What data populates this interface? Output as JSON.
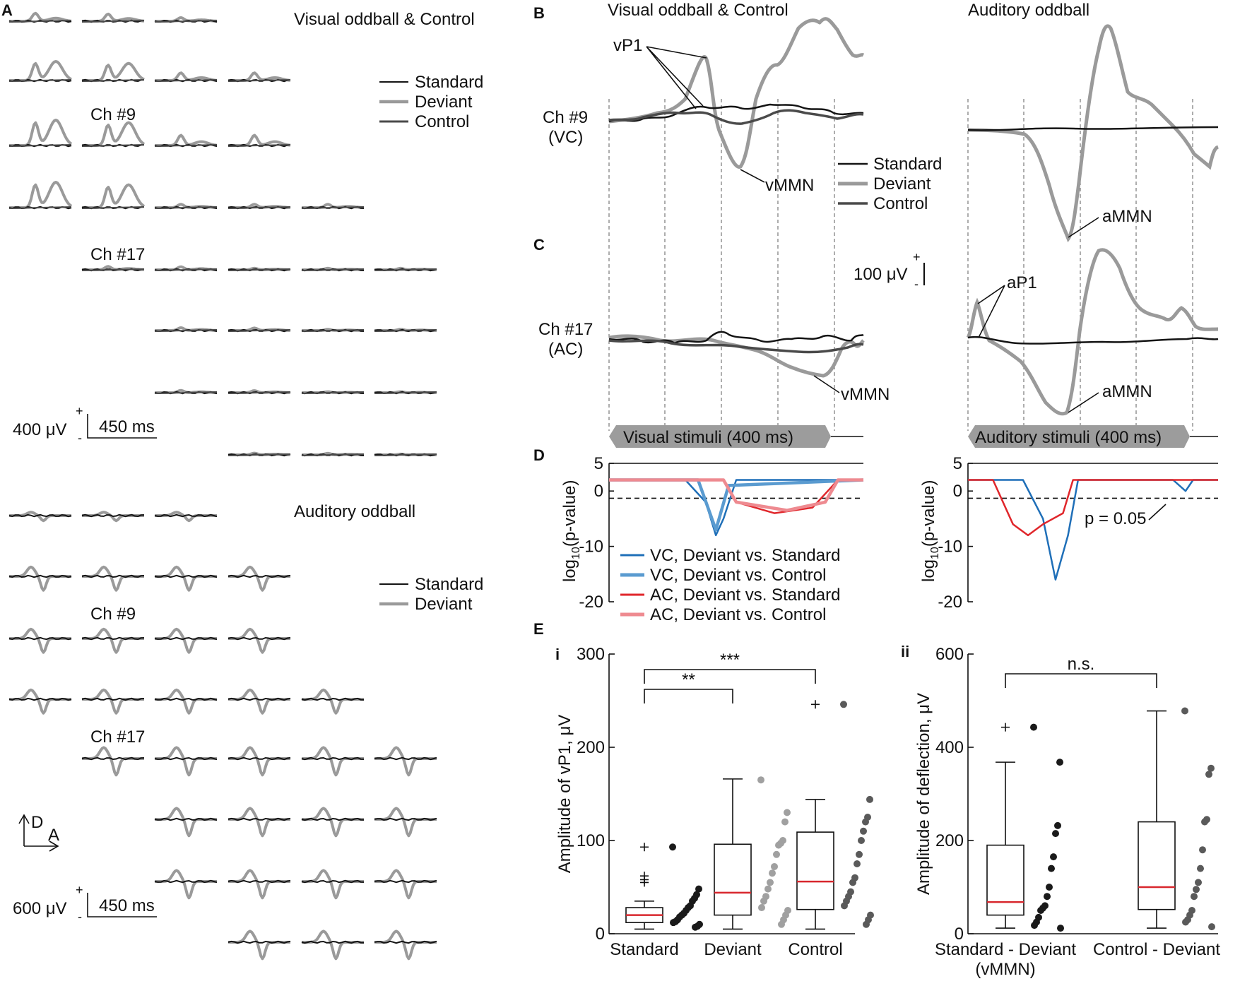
{
  "panel_labels": {
    "A": "A",
    "B": "B",
    "C": "C",
    "D": "D",
    "E": "E",
    "Ei": "i",
    "Eii": "ii"
  },
  "colors": {
    "standard": "#141414",
    "deviant": "#9a9a9a",
    "control": "#4a4a4a",
    "vc_std": "#1f6fb8",
    "vc_ctl": "#5a9bd0",
    "ac_std": "#e0262b",
    "ac_ctl": "#ee8a90",
    "median": "#d8272d"
  },
  "panelA": {
    "visual_title": "Visual oddball & Control",
    "auditory_title": "Auditory oddball",
    "legend_visual": [
      "Standard",
      "Deviant",
      "Control"
    ],
    "legend_auditory": [
      "Standard",
      "Deviant"
    ],
    "ch9": "Ch #9",
    "ch17": "Ch #17",
    "scale_visual": {
      "amp": "400 μV",
      "time": "450 ms",
      "plus": "+",
      "minus": "-"
    },
    "scale_auditory": {
      "amp": "600 μV",
      "time": "450 ms",
      "plus": "+",
      "minus": "-"
    },
    "orient_d": "D",
    "orient_a": "A"
  },
  "panelB": {
    "visual_title": "Visual oddball & Control",
    "auditory_title": "Auditory oddball",
    "channel": "Ch #9",
    "region": "(VC)",
    "annot_p1": "vP1",
    "annot_mmn": "vMMN",
    "annot_ammn": "aMMN",
    "legend": [
      "Standard",
      "Deviant",
      "Control"
    ]
  },
  "panelC": {
    "channel": "Ch #17",
    "region": "(AC)",
    "annot_mmn": "vMMN",
    "annot_ap1": "aP1",
    "annot_ammn": "aMMN",
    "scale": {
      "amp": "100 μV",
      "plus": "+",
      "minus": "-"
    },
    "visual_stim": "Visual stimuli (400 ms)",
    "auditory_stim": "Auditory stimuli (400 ms)"
  },
  "chart_data": [
    {
      "type": "line",
      "panel": "D-visual",
      "ylabel": "log10(p-value)",
      "ylabel_main": "log",
      "ylabel_sub": "10",
      "ylabel_rest": "(p-value)",
      "yticks": [
        "5",
        "0",
        "-10",
        "-20"
      ],
      "ytick_values": [
        5,
        0,
        -10,
        -20
      ],
      "ylim": [
        -20,
        5
      ],
      "threshold_value": -1.3,
      "legend": [
        "VC, Deviant vs. Standard",
        "VC, Deviant vs. Control",
        "AC, Deviant vs. Standard",
        "AC, Deviant vs. Control"
      ],
      "series": [
        {
          "name": "VC, Deviant vs. Standard",
          "values": [
            [
              0,
              2
            ],
            [
              0.3,
              2
            ],
            [
              0.38,
              -2
            ],
            [
              0.42,
              -8
            ],
            [
              0.45,
              -5
            ],
            [
              0.5,
              2
            ],
            [
              1,
              2
            ]
          ]
        },
        {
          "name": "VC, Deviant vs. Control",
          "values": [
            [
              0,
              2
            ],
            [
              0.35,
              2
            ],
            [
              0.42,
              -7
            ],
            [
              0.47,
              1
            ],
            [
              1,
              2
            ]
          ]
        },
        {
          "name": "AC, Deviant vs. Standard",
          "values": [
            [
              0,
              2
            ],
            [
              0.45,
              2
            ],
            [
              0.5,
              -2
            ],
            [
              0.65,
              -4
            ],
            [
              0.8,
              -3
            ],
            [
              0.9,
              2
            ],
            [
              1,
              2
            ]
          ]
        },
        {
          "name": "AC, Deviant vs. Control",
          "values": [
            [
              0,
              2
            ],
            [
              0.45,
              2
            ],
            [
              0.5,
              -2
            ],
            [
              0.7,
              -3.5
            ],
            [
              0.85,
              -2
            ],
            [
              0.9,
              2
            ],
            [
              1,
              2
            ]
          ]
        }
      ]
    },
    {
      "type": "line",
      "panel": "D-auditory",
      "ylabel": "log10(p-value)",
      "ylabel_main": "log",
      "ylabel_sub": "10",
      "ylabel_rest": "(p-value)",
      "yticks": [
        "5",
        "0",
        "-10",
        "-20"
      ],
      "ytick_values": [
        5,
        0,
        -10,
        -20
      ],
      "ylim": [
        -20,
        5
      ],
      "threshold_value": -1.3,
      "threshold_label": "p = 0.05",
      "series": [
        {
          "name": "VC, Deviant vs. Standard",
          "values": [
            [
              0,
              2
            ],
            [
              0.22,
              2
            ],
            [
              0.3,
              -5
            ],
            [
              0.35,
              -16
            ],
            [
              0.4,
              -8
            ],
            [
              0.44,
              2
            ],
            [
              0.82,
              2
            ],
            [
              0.87,
              0
            ],
            [
              0.9,
              2
            ],
            [
              1,
              2
            ]
          ]
        },
        {
          "name": "AC, Deviant vs. Standard",
          "values": [
            [
              0,
              2
            ],
            [
              0.1,
              2
            ],
            [
              0.18,
              -6
            ],
            [
              0.24,
              -8
            ],
            [
              0.3,
              -6
            ],
            [
              0.38,
              -4
            ],
            [
              0.42,
              2
            ],
            [
              1,
              2
            ]
          ]
        }
      ]
    },
    {
      "type": "box",
      "panel": "E-i",
      "ylabel": "Amplitude of vP1, μV",
      "yticks": [
        "0",
        "100",
        "200",
        "300"
      ],
      "ylim": [
        0,
        300
      ],
      "categories": [
        "Standard",
        "Deviant",
        "Control"
      ],
      "boxes": [
        {
          "q1": 12,
          "median": 20,
          "q3": 28,
          "whisker_low": 5,
          "whisker_high": 35,
          "outliers": [
            93,
            62,
            58,
            55
          ],
          "points": [
            93,
            48,
            42,
            38,
            35,
            30,
            28,
            25,
            22,
            20,
            18,
            15,
            13,
            12,
            10,
            8,
            7
          ]
        },
        {
          "q1": 20,
          "median": 44,
          "q3": 96,
          "whisker_low": 5,
          "whisker_high": 166,
          "outliers": [],
          "points": [
            165,
            130,
            120,
            100,
            97,
            95,
            85,
            72,
            65,
            55,
            48,
            40,
            35,
            28,
            25,
            20,
            15,
            10
          ]
        },
        {
          "q1": 26,
          "median": 56,
          "q3": 109,
          "whisker_low": 5,
          "whisker_high": 144,
          "outliers": [
            246
          ],
          "points": [
            246,
            144,
            125,
            120,
            110,
            100,
            85,
            75,
            60,
            55,
            45,
            40,
            35,
            30,
            20,
            15,
            10
          ]
        }
      ],
      "sig": [
        {
          "from": "Standard",
          "to": "Deviant",
          "label": "**"
        },
        {
          "from": "Standard",
          "to": "Control",
          "label": "***"
        }
      ]
    },
    {
      "type": "box",
      "panel": "E-ii",
      "ylabel": "Amplitude of deflection, μV",
      "yticks": [
        "0",
        "200",
        "400",
        "600"
      ],
      "ylim": [
        0,
        600
      ],
      "categories": [
        "Standard - Deviant",
        "Control - Deviant"
      ],
      "category_sub": [
        "(vMMN)",
        ""
      ],
      "boxes": [
        {
          "q1": 40,
          "median": 68,
          "q3": 190,
          "whisker_low": 12,
          "whisker_high": 368,
          "outliers": [
            443
          ],
          "points": [
            443,
            368,
            232,
            215,
            165,
            140,
            100,
            80,
            60,
            55,
            50,
            35,
            25,
            18,
            12
          ]
        },
        {
          "q1": 52,
          "median": 100,
          "q3": 240,
          "whisker_low": 12,
          "whisker_high": 478,
          "outliers": [],
          "points": [
            478,
            355,
            342,
            245,
            240,
            180,
            140,
            110,
            95,
            80,
            50,
            40,
            30,
            25,
            15
          ]
        }
      ],
      "sig": [
        {
          "from": "Standard - Deviant",
          "to": "Control - Deviant",
          "label": "n.s."
        }
      ]
    }
  ]
}
